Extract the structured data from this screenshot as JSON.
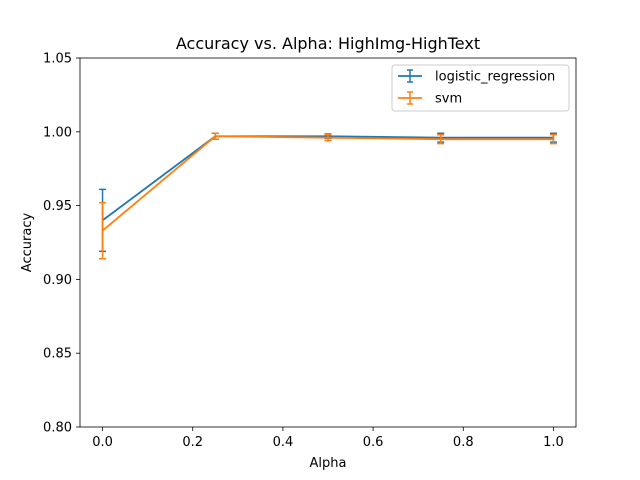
{
  "chart_data": {
    "type": "line",
    "title": "Accuracy vs. Alpha: HighImg-HighText",
    "xlabel": "Alpha",
    "ylabel": "Accuracy",
    "xlim": [
      -0.05,
      1.05
    ],
    "ylim": [
      0.8,
      1.05
    ],
    "xticks": [
      0.0,
      0.2,
      0.4,
      0.6,
      0.8,
      1.0
    ],
    "xtick_labels": [
      "0.0",
      "0.2",
      "0.4",
      "0.6",
      "0.8",
      "1.0"
    ],
    "yticks": [
      0.8,
      0.85,
      0.9,
      0.95,
      1.0,
      1.05
    ],
    "ytick_labels": [
      "0.80",
      "0.85",
      "0.90",
      "0.95",
      "1.00",
      "1.05"
    ],
    "grid": false,
    "legend_position": "top-right",
    "x": [
      0.0,
      0.25,
      0.5,
      0.75,
      1.0
    ],
    "series": [
      {
        "name": "logistic_regression",
        "color": "#1f77b4",
        "values": [
          0.94,
          0.997,
          0.997,
          0.996,
          0.996
        ],
        "errors": [
          0.021,
          0.002,
          0.0015,
          0.003,
          0.003
        ]
      },
      {
        "name": "svm",
        "color": "#ff7f0e",
        "values": [
          0.933,
          0.997,
          0.996,
          0.995,
          0.995
        ],
        "errors": [
          0.019,
          0.002,
          0.002,
          0.003,
          0.003
        ]
      }
    ]
  }
}
